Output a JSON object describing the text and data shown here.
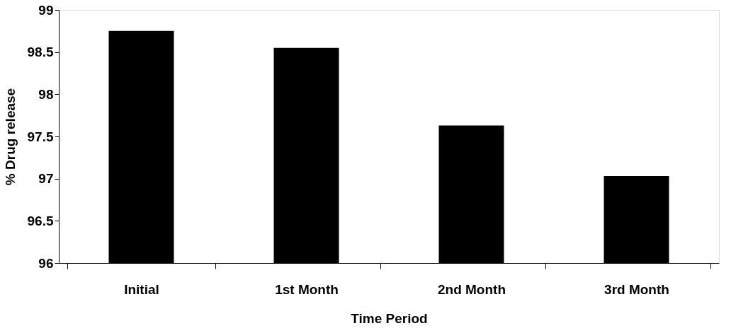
{
  "chart_data": {
    "type": "bar",
    "xlabel": "Time Period",
    "ylabel": "% Drug release",
    "categories": [
      "Initial",
      "1st Month",
      "2nd Month",
      "3rd Month"
    ],
    "values": [
      98.75,
      98.55,
      97.63,
      97.03
    ],
    "color": "#000000",
    "ylim": [
      96,
      99
    ],
    "yticks": [
      96,
      96.5,
      97,
      97.5,
      98,
      98.5,
      99
    ],
    "grid": false
  }
}
